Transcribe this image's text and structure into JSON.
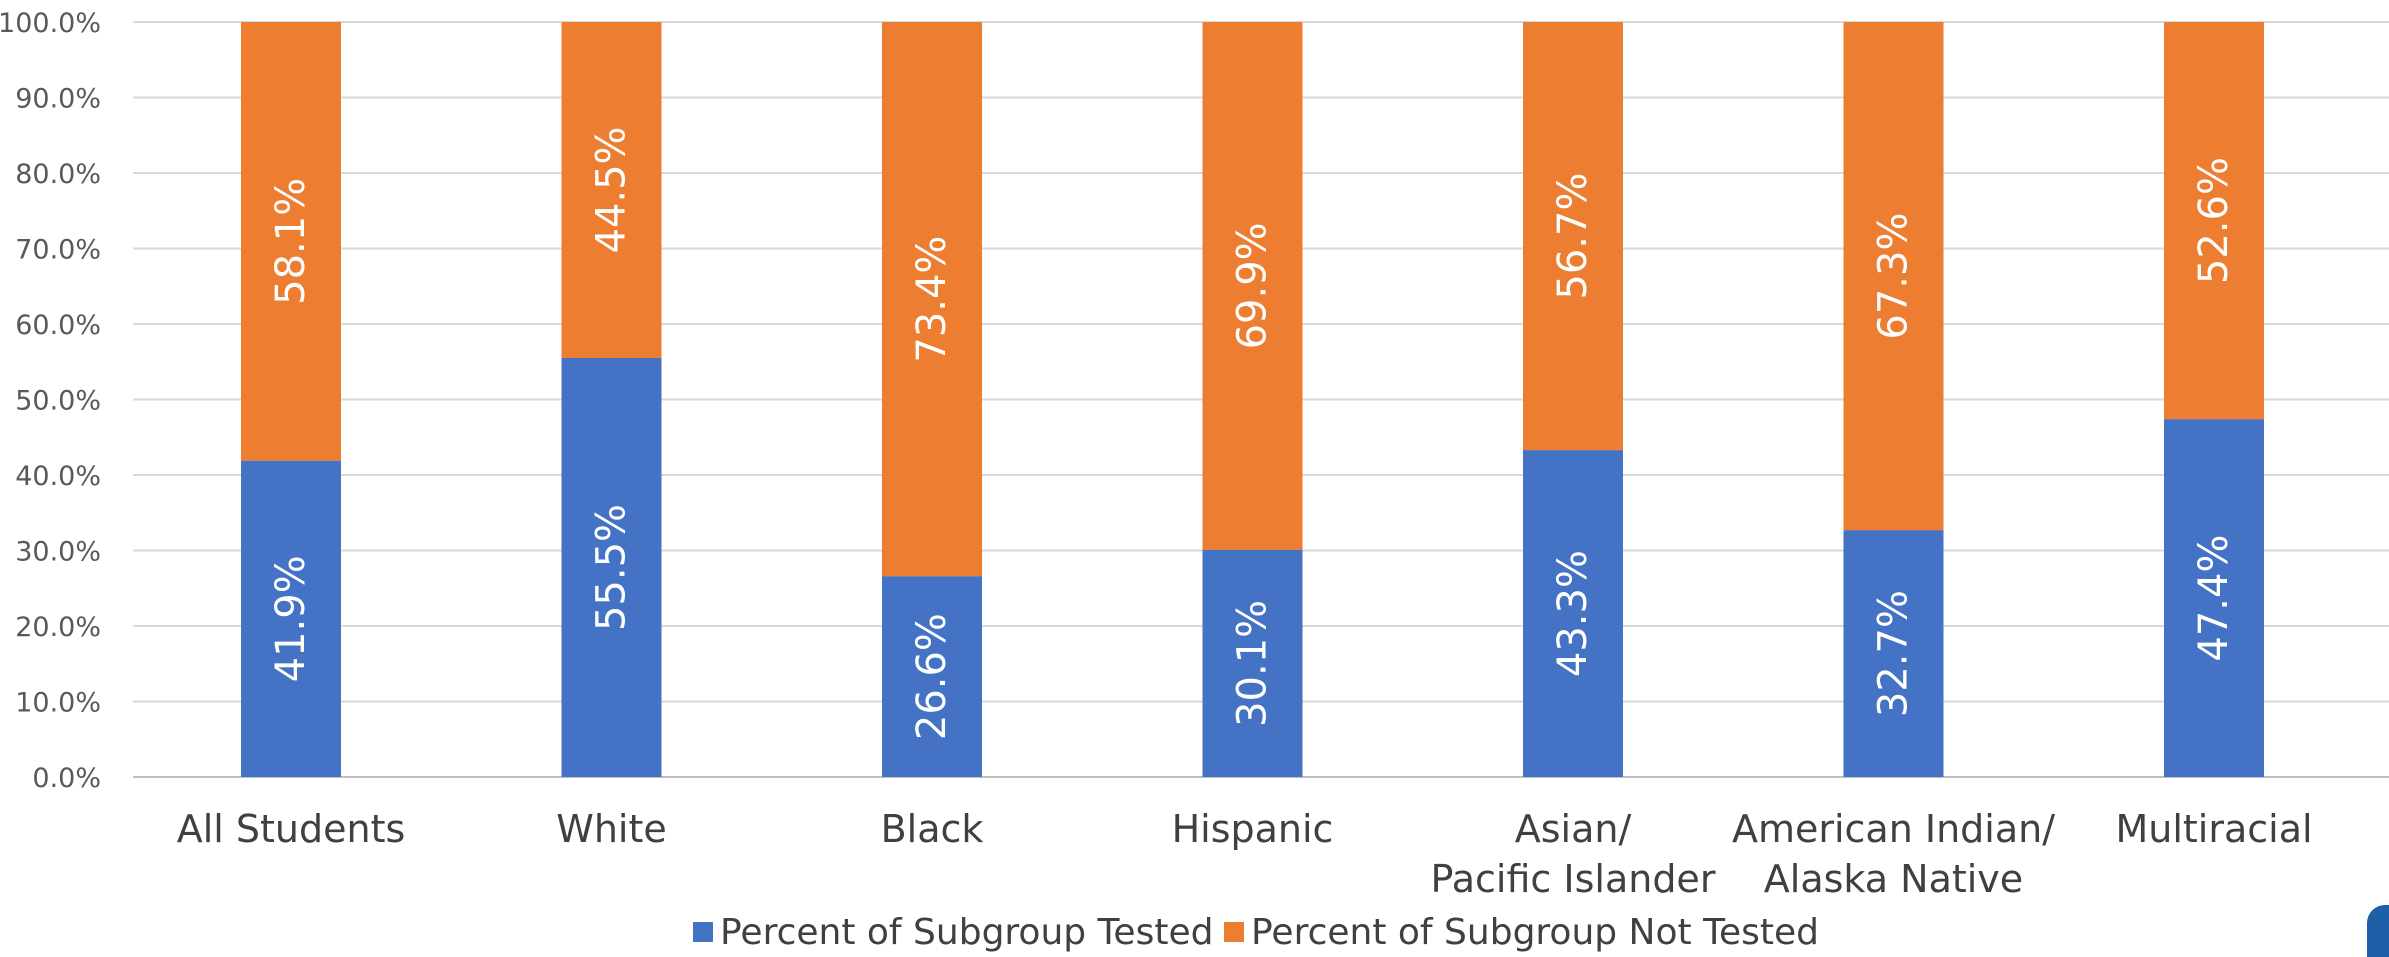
{
  "chart_data": {
    "type": "bar",
    "stacked": true,
    "categories": [
      [
        "All Students"
      ],
      [
        "White"
      ],
      [
        "Black"
      ],
      [
        "Hispanic"
      ],
      [
        "Asian/",
        "Pacific Islander"
      ],
      [
        "American Indian/",
        "Alaska Native"
      ],
      [
        "Multiracial"
      ]
    ],
    "series": [
      {
        "name": "Percent of Subgroup Tested",
        "color": "#4472C4",
        "values": [
          41.9,
          55.5,
          26.6,
          30.1,
          43.3,
          32.7,
          47.4
        ],
        "labels": [
          "41.9%",
          "55.5%",
          "26.6%",
          "30.1%",
          "43.3%",
          "32.7%",
          "47.4%"
        ]
      },
      {
        "name": "Percent of Subgroup Not Tested",
        "color": "#ED7D31",
        "values": [
          58.1,
          44.5,
          73.4,
          69.9,
          56.7,
          67.3,
          52.6
        ],
        "labels": [
          "58.1%",
          "44.5%",
          "73.4%",
          "69.9%",
          "56.7%",
          "67.3%",
          "52.6%"
        ]
      }
    ],
    "ylim": [
      0,
      100
    ],
    "y_ticks": [
      "0.0%",
      "10.0%",
      "20.0%",
      "30.0%",
      "40.0%",
      "50.0%",
      "60.0%",
      "70.0%",
      "80.0%",
      "90.0%",
      "100.0%"
    ],
    "grid": true,
    "legend_position": "bottom"
  }
}
